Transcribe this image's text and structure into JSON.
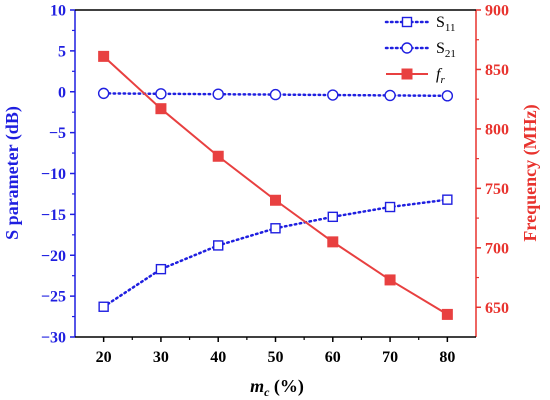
{
  "chart_data": {
    "type": "line",
    "x": [
      20,
      30,
      40,
      50,
      60,
      70,
      80
    ],
    "xlim": [
      15,
      85
    ],
    "xticks": [
      20,
      30,
      40,
      50,
      60,
      70,
      80
    ],
    "xlabel": {
      "main": "m",
      "sub": "c",
      "suffix": " (%)"
    },
    "ylabel": "S parameter (dB)",
    "ylim": [
      -30,
      10
    ],
    "yticks": [
      -30,
      -25,
      -20,
      -15,
      -10,
      -5,
      0,
      5,
      10
    ],
    "y2label": "Frequency (MHz)",
    "y2lim": [
      625,
      900
    ],
    "y2ticks": [
      650,
      700,
      750,
      800,
      850,
      900
    ],
    "series": [
      {
        "name": "S11",
        "name_main": "S",
        "name_sub": "11",
        "axis": "left",
        "color": "#1f1fe0",
        "style": "dotted",
        "marker": "open-square",
        "values": [
          -26.3,
          -21.7,
          -18.8,
          -16.7,
          -15.3,
          -14.1,
          -13.2
        ]
      },
      {
        "name": "S21",
        "name_main": "S",
        "name_sub": "21",
        "axis": "left",
        "color": "#1f1fe0",
        "style": "dotted",
        "marker": "open-circle",
        "values": [
          -0.2,
          -0.25,
          -0.3,
          -0.35,
          -0.4,
          -0.45,
          -0.5
        ]
      },
      {
        "name": "fr",
        "name_main": "f",
        "name_sub": "r",
        "axis": "right",
        "color": "#e84040",
        "style": "solid",
        "marker": "filled-square",
        "values": [
          861,
          817,
          777,
          740,
          705,
          673,
          644
        ]
      }
    ],
    "legend_position": "top-right",
    "grid": false,
    "colors": {
      "left_axis": "#1f1fe0",
      "right_axis": "#e8332e",
      "bottom_axis": "#000000"
    }
  }
}
